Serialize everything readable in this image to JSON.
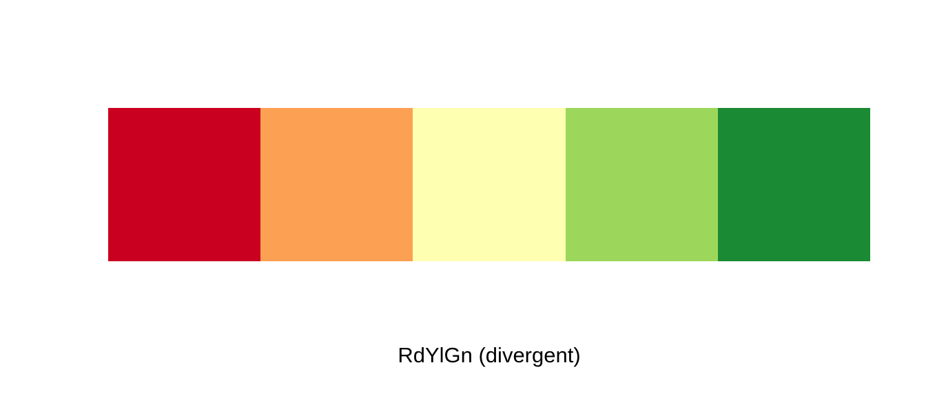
{
  "palette": {
    "name": "RdYlGn (divergent)",
    "colors": [
      "#ca0020",
      "#fca054",
      "#ffffb2",
      "#9cd75c",
      "#1b8a34"
    ]
  }
}
